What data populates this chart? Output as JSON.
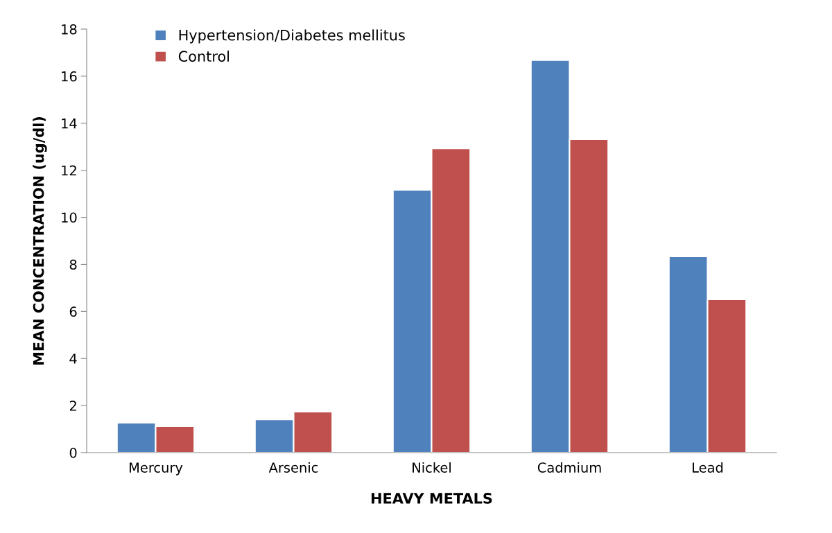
{
  "chart_data": {
    "type": "bar",
    "xlabel": "HEAVY METALS",
    "ylabel": "MEAN CONCENTRATION (ug/dl)",
    "categories": [
      "Mercury",
      "Arsenic",
      "Nickel",
      "Cadmium",
      "Lead"
    ],
    "series": [
      {
        "name": "Hypertension/Diabetes mellitus",
        "color": "#4f81bd",
        "values": [
          1.27,
          1.41,
          11.17,
          16.68,
          8.34
        ]
      },
      {
        "name": "Control",
        "color": "#c0504d",
        "values": [
          1.12,
          1.74,
          12.93,
          13.32,
          6.51
        ]
      }
    ],
    "ylim": [
      0,
      18
    ],
    "yticks": [
      0,
      2,
      4,
      6,
      8,
      10,
      12,
      14,
      16,
      18
    ],
    "grid": false,
    "legend": "top left"
  }
}
